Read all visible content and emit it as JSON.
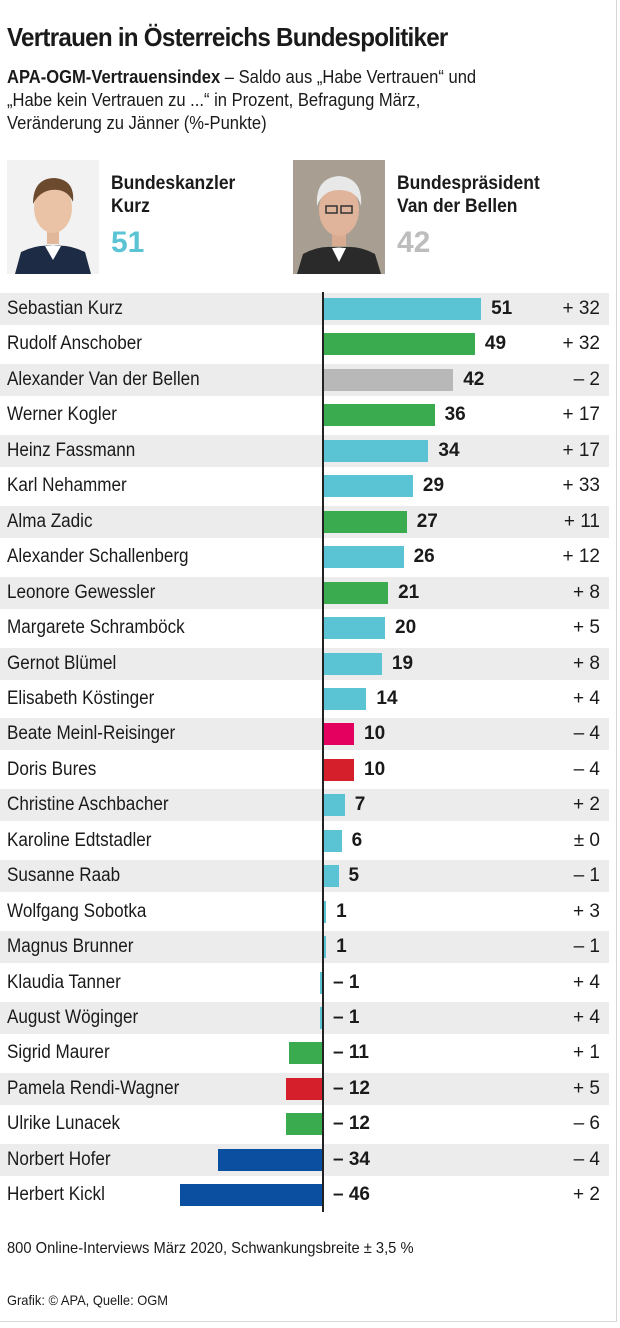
{
  "header": {
    "title": "Vertrauen in Österreichs Bundespolitiker",
    "subtitle_bold": "APA-OGM-Vertrauensindex",
    "subtitle_rest": " – Saldo aus „Habe Vertrauen“ und „Habe kein Vertrauen zu ...“ in Prozent, Befragung März, Veränderung zu Jänner (%-Punkte)"
  },
  "highlights": [
    {
      "role": "Bundeskanzler",
      "name": "Kurz",
      "value": "51",
      "color": "#5bc4d4"
    },
    {
      "role": "Bundespräsident",
      "name": "Van der Bellen",
      "value": "42",
      "color": "#bdbdbd"
    }
  ],
  "colors": {
    "light_blue": "#5bc4d4",
    "green": "#3aab4f",
    "grey": "#b8b8b8",
    "pink": "#e3005e",
    "red": "#d51f2b",
    "dark_blue": "#0a4fa0",
    "band": "#ececec"
  },
  "chart_data": {
    "type": "bar",
    "orientation": "horizontal",
    "xlim": [
      -46,
      51
    ],
    "rows": [
      {
        "name": "Sebastian Kurz",
        "value": 51,
        "value_label": "51",
        "change": "+ 32",
        "color": "#5bc4d4"
      },
      {
        "name": "Rudolf Anschober",
        "value": 49,
        "value_label": "49",
        "change": "+ 32",
        "color": "#3aab4f"
      },
      {
        "name": "Alexander Van der Bellen",
        "value": 42,
        "value_label": "42",
        "change": "– 2",
        "color": "#b8b8b8"
      },
      {
        "name": "Werner Kogler",
        "value": 36,
        "value_label": "36",
        "change": "+ 17",
        "color": "#3aab4f"
      },
      {
        "name": "Heinz Fassmann",
        "value": 34,
        "value_label": "34",
        "change": "+ 17",
        "color": "#5bc4d4"
      },
      {
        "name": "Karl Nehammer",
        "value": 29,
        "value_label": "29",
        "change": "+ 33",
        "color": "#5bc4d4"
      },
      {
        "name": "Alma Zadic",
        "value": 27,
        "value_label": "27",
        "change": "+ 11",
        "color": "#3aab4f"
      },
      {
        "name": "Alexander Schallenberg",
        "value": 26,
        "value_label": "26",
        "change": "+ 12",
        "color": "#5bc4d4"
      },
      {
        "name": "Leonore Gewessler",
        "value": 21,
        "value_label": "21",
        "change": "+ 8",
        "color": "#3aab4f"
      },
      {
        "name": "Margarete Schramböck",
        "value": 20,
        "value_label": "20",
        "change": "+ 5",
        "color": "#5bc4d4"
      },
      {
        "name": "Gernot Blümel",
        "value": 19,
        "value_label": "19",
        "change": "+ 8",
        "color": "#5bc4d4"
      },
      {
        "name": "Elisabeth Köstinger",
        "value": 14,
        "value_label": "14",
        "change": "+ 4",
        "color": "#5bc4d4"
      },
      {
        "name": "Beate Meinl-Reisinger",
        "value": 10,
        "value_label": "10",
        "change": "– 4",
        "color": "#e3005e"
      },
      {
        "name": "Doris Bures",
        "value": 10,
        "value_label": "10",
        "change": "– 4",
        "color": "#d51f2b"
      },
      {
        "name": "Christine Aschbacher",
        "value": 7,
        "value_label": "7",
        "change": "+ 2",
        "color": "#5bc4d4"
      },
      {
        "name": "Karoline Edtstadler",
        "value": 6,
        "value_label": "6",
        "change": "± 0",
        "color": "#5bc4d4"
      },
      {
        "name": "Susanne Raab",
        "value": 5,
        "value_label": "5",
        "change": "– 1",
        "color": "#5bc4d4"
      },
      {
        "name": "Wolfgang Sobotka",
        "value": 1,
        "value_label": "1",
        "change": "+ 3",
        "color": "#5bc4d4"
      },
      {
        "name": "Magnus Brunner",
        "value": 1,
        "value_label": "1",
        "change": "– 1",
        "color": "#5bc4d4"
      },
      {
        "name": "Klaudia Tanner",
        "value": -1,
        "value_label": "– 1",
        "change": "+ 4",
        "color": "#5bc4d4"
      },
      {
        "name": "August Wöginger",
        "value": -1,
        "value_label": "– 1",
        "change": "+ 4",
        "color": "#5bc4d4"
      },
      {
        "name": "Sigrid Maurer",
        "value": -11,
        "value_label": "– 11",
        "change": "+ 1",
        "color": "#3aab4f"
      },
      {
        "name": "Pamela Rendi-Wagner",
        "value": -12,
        "value_label": "– 12",
        "change": "+ 5",
        "color": "#d51f2b"
      },
      {
        "name": "Ulrike Lunacek",
        "value": -12,
        "value_label": "– 12",
        "change": "– 6",
        "color": "#3aab4f"
      },
      {
        "name": "Norbert Hofer",
        "value": -34,
        "value_label": "– 34",
        "change": "– 4",
        "color": "#0a4fa0"
      },
      {
        "name": "Herbert Kickl",
        "value": -46,
        "value_label": "– 46",
        "change": "+ 2",
        "color": "#0a4fa0"
      }
    ]
  },
  "footer": {
    "note": "800 Online-Interviews März 2020, Schwankungsbreite ± 3,5 %",
    "credit": "Grafik: © APA, Quelle: OGM"
  }
}
